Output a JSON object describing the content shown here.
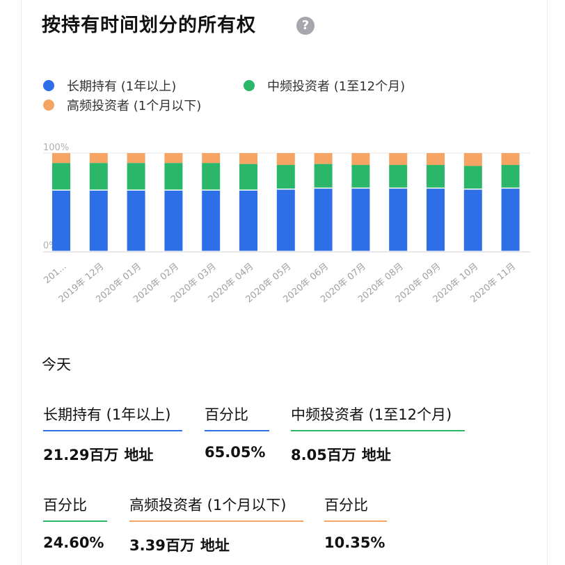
{
  "title": "按持有时间划分的所有权",
  "help_glyph": "?",
  "colors": {
    "long": "#2d6fe6",
    "mid": "#2bb76a",
    "short": "#f5a463"
  },
  "legend": [
    {
      "label": "长期持有 (1年以上)",
      "color": "#2d6fe6"
    },
    {
      "label": "中频投资者 (1至12个月)",
      "color": "#2bb76a"
    },
    {
      "label": "高频投资者 (1个月以下)",
      "color": "#f5a463"
    }
  ],
  "chart_data": {
    "type": "bar",
    "stacked": true,
    "y_tick_labels": [
      "100%",
      "0%"
    ],
    "ylim": [
      0,
      100
    ],
    "categories": [
      "201...",
      "2019年 12月",
      "2020年 01月",
      "2020年 02月",
      "2020年 03月",
      "2020年 04月",
      "2020年 05月",
      "2020年 06月",
      "2020年 07月",
      "2020年 08月",
      "2020年 09月",
      "2020年 10月",
      "2020年 11月"
    ],
    "series": [
      {
        "name": "长期持有 (1年以上)",
        "values": [
          62,
          62,
          62,
          62,
          62,
          62,
          63,
          64,
          64,
          64,
          64,
          63,
          64
        ]
      },
      {
        "name": "中频投资者 (1至12个月)",
        "values": [
          28,
          28,
          28,
          28,
          28,
          27,
          25,
          25,
          24,
          24,
          24,
          24,
          24
        ]
      },
      {
        "name": "高频投资者 (1个月以下)",
        "values": [
          10,
          10,
          10,
          10,
          10,
          11,
          12,
          11,
          12,
          12,
          12,
          13,
          12
        ]
      }
    ]
  },
  "today_label": "今天",
  "stats": {
    "long_head": "长期持有 (1年以上)",
    "long_value": "21.29百万",
    "long_unit": "地址",
    "long_pct_head": "百分比",
    "long_pct": "65.05%",
    "mid_head": "中频投资者 (1至12个月)",
    "mid_value": "8.05百万",
    "mid_unit": "地址",
    "mid_pct_head": "百分比",
    "mid_pct": "24.60%",
    "short_head": "高频投资者 (1个月以下)",
    "short_value": "3.39百万",
    "short_unit": "地址",
    "short_pct_head": "百分比",
    "short_pct": "10.35%"
  }
}
